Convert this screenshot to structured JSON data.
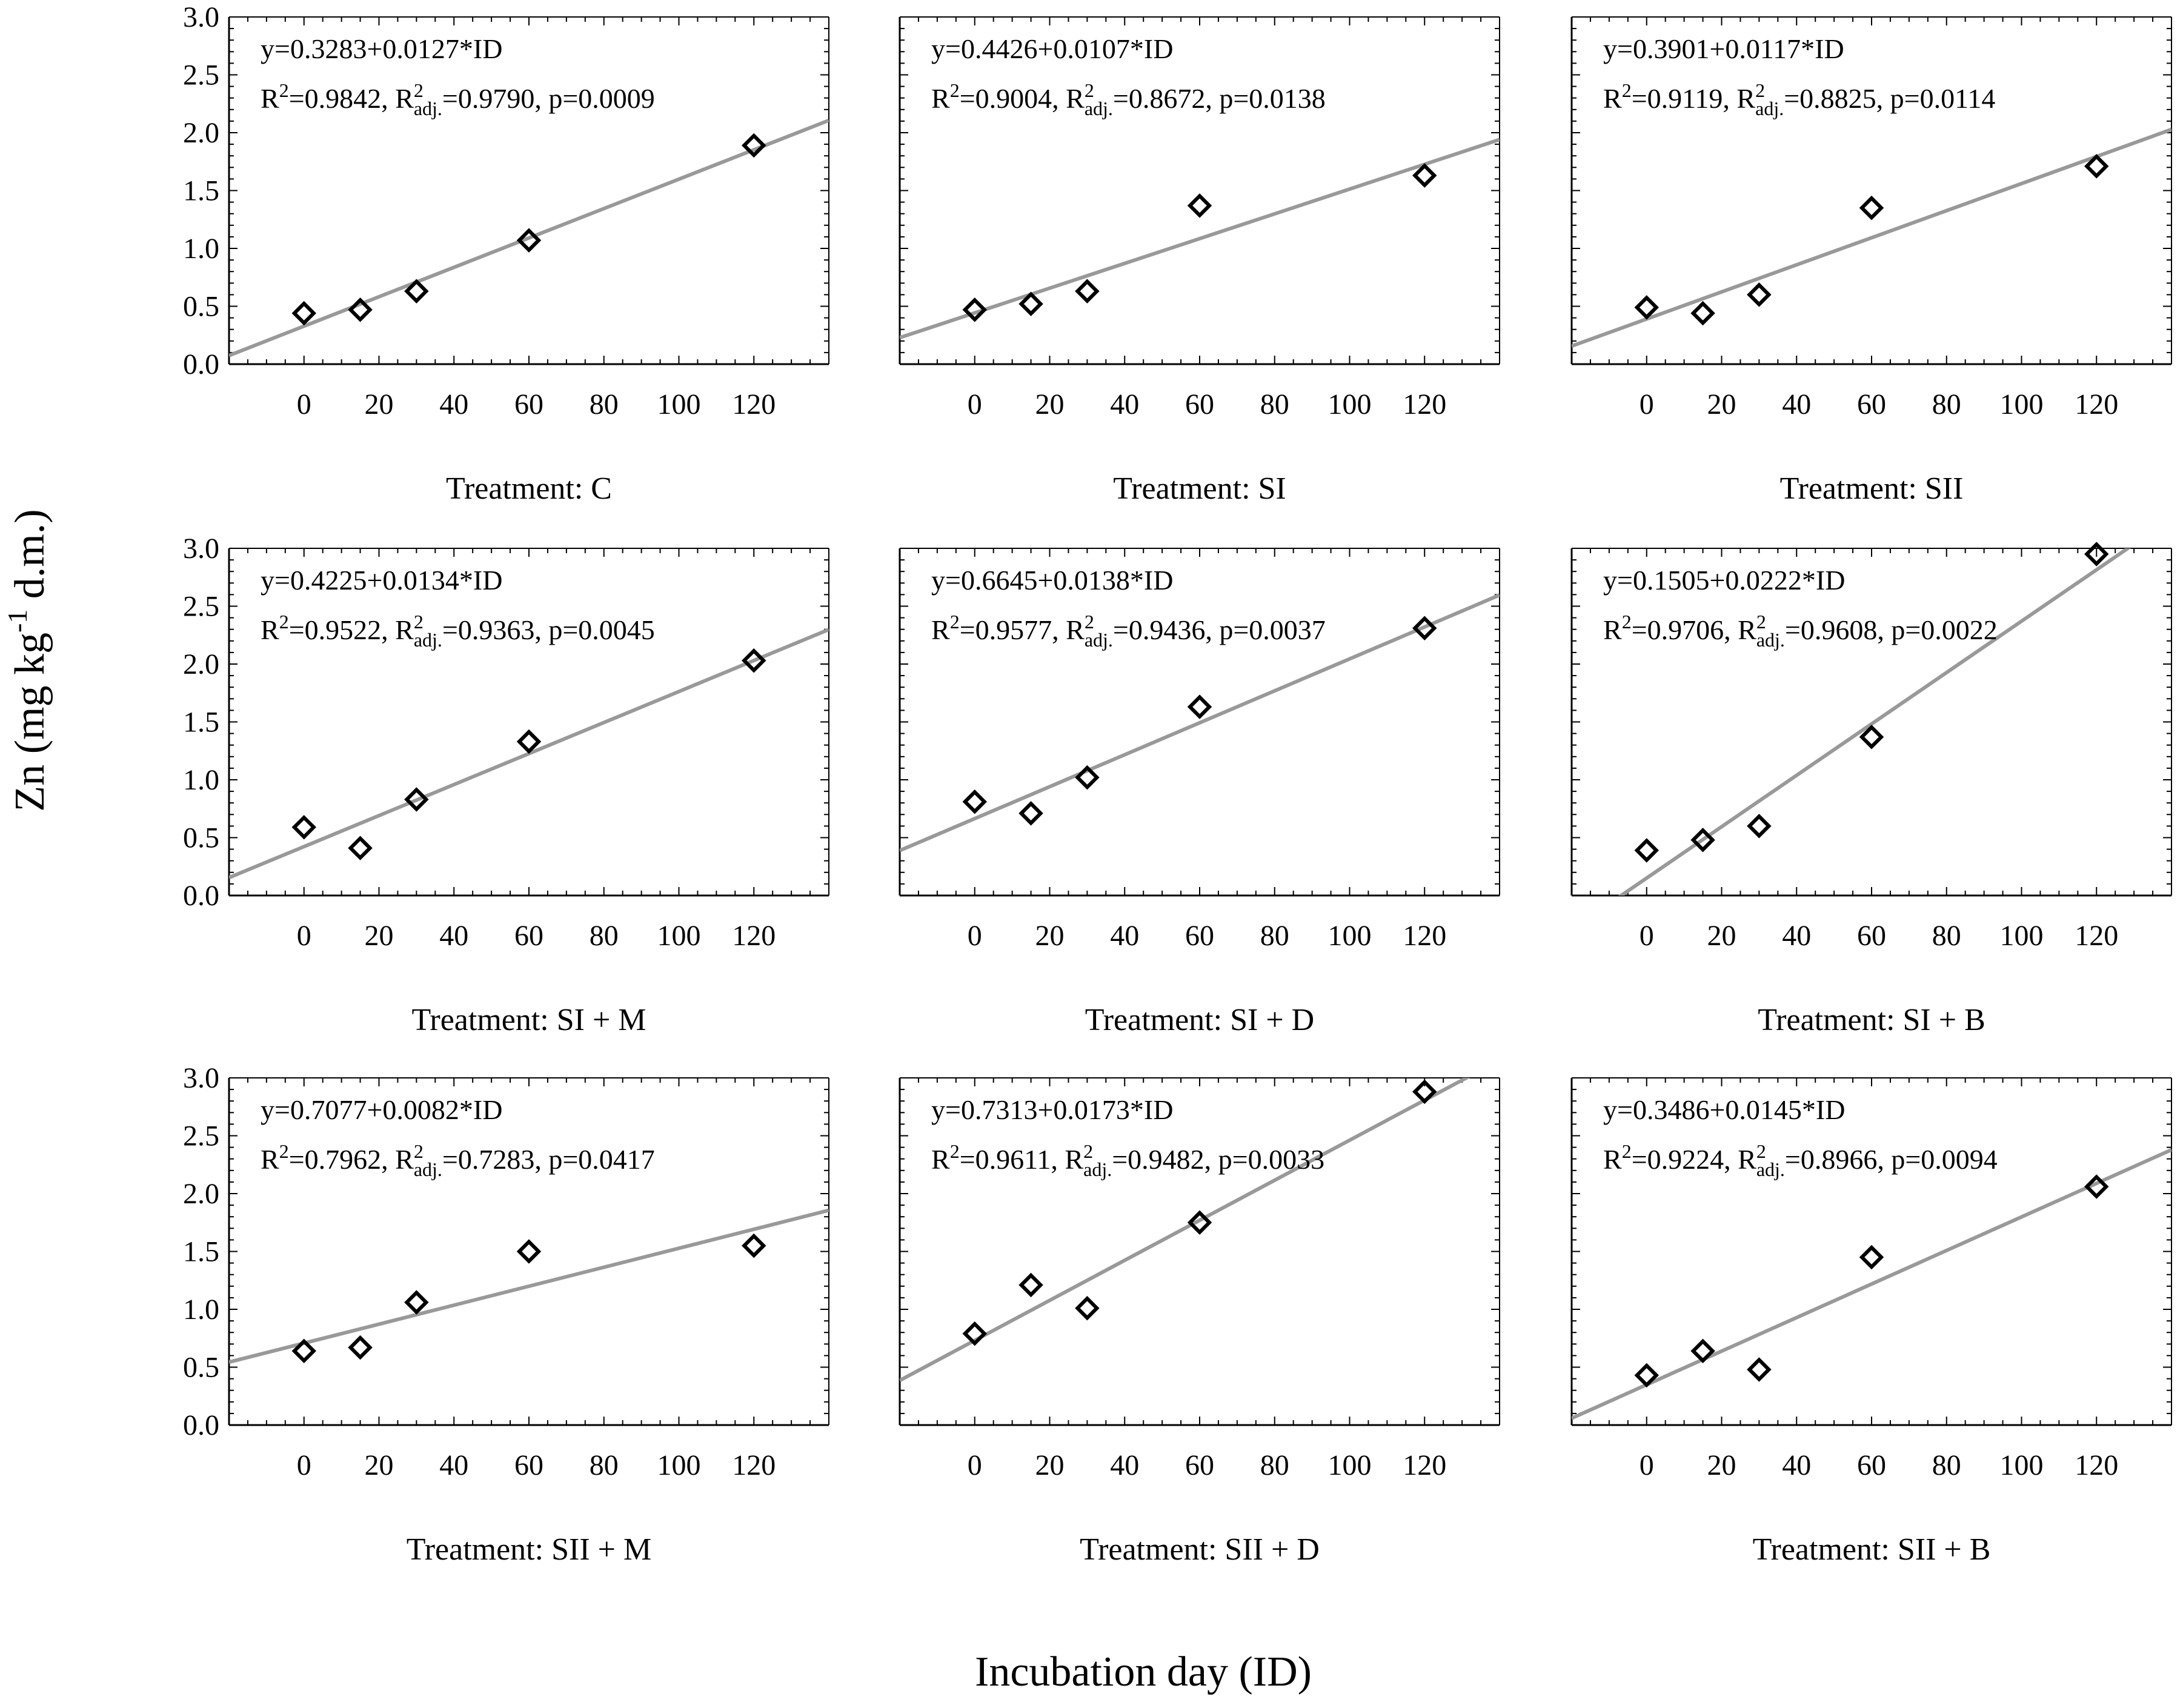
{
  "figure": {
    "ylabel": "Zn (mg kg-1 d.m.)",
    "ylabel_parts": {
      "main": "Zn (mg kg",
      "sup": "-1",
      "tail": " d.m.)"
    },
    "xlabel": "Incubation day (ID)"
  },
  "chart_data": [
    {
      "type": "scatter",
      "panel_label": "Treatment: C",
      "x": [
        0,
        15,
        30,
        60,
        120
      ],
      "y": [
        0.44,
        0.47,
        0.63,
        1.07,
        1.89
      ],
      "equation": "y=0.3283+0.0127*ID",
      "intercept": 0.3283,
      "slope": 0.0127,
      "stats": {
        "r2": "0.9842",
        "r2adj": "0.9790",
        "p": "0.0009"
      },
      "xlim": [
        -20,
        140
      ],
      "ylim": [
        0,
        3.0
      ],
      "xticks": [
        0,
        20,
        40,
        60,
        80,
        100,
        120
      ],
      "yticks": [
        "0.0",
        "0.5",
        "1.0",
        "1.5",
        "2.0",
        "2.5",
        "3.0"
      ],
      "grid": false
    },
    {
      "type": "scatter",
      "panel_label": "Treatment: SI",
      "x": [
        0,
        15,
        30,
        60,
        120
      ],
      "y": [
        0.47,
        0.52,
        0.63,
        1.37,
        1.63
      ],
      "equation": "y=0.4426+0.0107*ID",
      "intercept": 0.4426,
      "slope": 0.0107,
      "stats": {
        "r2": "0.9004",
        "r2adj": "0.8672",
        "p": "0.0138"
      },
      "xlim": [
        -20,
        140
      ],
      "ylim": [
        0,
        3.0
      ],
      "xticks": [
        0,
        20,
        40,
        60,
        80,
        100,
        120
      ],
      "yticks": [
        "0.0",
        "0.5",
        "1.0",
        "1.5",
        "2.0",
        "2.5",
        "3.0"
      ],
      "grid": false
    },
    {
      "type": "scatter",
      "panel_label": "Treatment: SII",
      "x": [
        0,
        15,
        30,
        60,
        120
      ],
      "y": [
        0.49,
        0.44,
        0.6,
        1.35,
        1.71
      ],
      "equation": "y=0.3901+0.0117*ID",
      "intercept": 0.3901,
      "slope": 0.0117,
      "stats": {
        "r2": "0.9119",
        "r2adj": "0.8825",
        "p": "0.0114"
      },
      "xlim": [
        -20,
        140
      ],
      "ylim": [
        0,
        3.0
      ],
      "xticks": [
        0,
        20,
        40,
        60,
        80,
        100,
        120
      ],
      "yticks": [
        "0.0",
        "0.5",
        "1.0",
        "1.5",
        "2.0",
        "2.5",
        "3.0"
      ],
      "grid": false
    },
    {
      "type": "scatter",
      "panel_label": "Treatment: SI + M",
      "x": [
        0,
        15,
        30,
        60,
        120
      ],
      "y": [
        0.59,
        0.41,
        0.83,
        1.33,
        2.03
      ],
      "equation": "y=0.4225+0.0134*ID",
      "intercept": 0.4225,
      "slope": 0.0134,
      "stats": {
        "r2": "0.9522",
        "r2adj": "0.9363",
        "p": "0.0045"
      },
      "xlim": [
        -20,
        140
      ],
      "ylim": [
        0,
        3.0
      ],
      "xticks": [
        0,
        20,
        40,
        60,
        80,
        100,
        120
      ],
      "yticks": [
        "0.0",
        "0.5",
        "1.0",
        "1.5",
        "2.0",
        "2.5",
        "3.0"
      ],
      "grid": false
    },
    {
      "type": "scatter",
      "panel_label": "Treatment: SI + D",
      "x": [
        0,
        15,
        30,
        60,
        120
      ],
      "y": [
        0.81,
        0.71,
        1.02,
        1.63,
        2.31
      ],
      "equation": "y=0.6645+0.0138*ID",
      "intercept": 0.6645,
      "slope": 0.0138,
      "stats": {
        "r2": "0.9577",
        "r2adj": "0.9436",
        "p": "0.0037"
      },
      "xlim": [
        -20,
        140
      ],
      "ylim": [
        0,
        3.0
      ],
      "xticks": [
        0,
        20,
        40,
        60,
        80,
        100,
        120
      ],
      "yticks": [
        "0.0",
        "0.5",
        "1.0",
        "1.5",
        "2.0",
        "2.5",
        "3.0"
      ],
      "grid": false
    },
    {
      "type": "scatter",
      "panel_label": "Treatment: SI + B",
      "x": [
        0,
        15,
        30,
        60,
        120
      ],
      "y": [
        0.39,
        0.48,
        0.6,
        1.37,
        2.95
      ],
      "equation": "y=0.1505+0.0222*ID",
      "intercept": 0.1505,
      "slope": 0.0222,
      "stats": {
        "r2": "0.9706",
        "r2adj": "0.9608",
        "p": "0.0022"
      },
      "xlim": [
        -20,
        140
      ],
      "ylim": [
        0,
        3.0
      ],
      "xticks": [
        0,
        20,
        40,
        60,
        80,
        100,
        120
      ],
      "yticks": [
        "0.0",
        "0.5",
        "1.0",
        "1.5",
        "2.0",
        "2.5",
        "3.0"
      ],
      "grid": false
    },
    {
      "type": "scatter",
      "panel_label": "Treatment: SII + M",
      "x": [
        0,
        15,
        30,
        60,
        120
      ],
      "y": [
        0.64,
        0.67,
        1.06,
        1.5,
        1.55
      ],
      "equation": "y=0.7077+0.0082*ID",
      "intercept": 0.7077,
      "slope": 0.0082,
      "stats": {
        "r2": "0.7962",
        "r2adj": "0.7283",
        "p": "0.0417"
      },
      "xlim": [
        -20,
        140
      ],
      "ylim": [
        0,
        3.0
      ],
      "xticks": [
        0,
        20,
        40,
        60,
        80,
        100,
        120
      ],
      "yticks": [
        "0.0",
        "0.5",
        "1.0",
        "1.5",
        "2.0",
        "2.5",
        "3.0"
      ],
      "grid": false
    },
    {
      "type": "scatter",
      "panel_label": "Treatment: SII + D",
      "x": [
        0,
        15,
        30,
        60,
        120
      ],
      "y": [
        0.79,
        1.21,
        1.01,
        1.75,
        2.88
      ],
      "equation": "y=0.7313+0.0173*ID",
      "intercept": 0.7313,
      "slope": 0.0173,
      "stats": {
        "r2": "0.9611",
        "r2adj": "0.9482",
        "p": "0.0033"
      },
      "xlim": [
        -20,
        140
      ],
      "ylim": [
        0,
        3.0
      ],
      "xticks": [
        0,
        20,
        40,
        60,
        80,
        100,
        120
      ],
      "yticks": [
        "0.0",
        "0.5",
        "1.0",
        "1.5",
        "2.0",
        "2.5",
        "3.0"
      ],
      "grid": false
    },
    {
      "type": "scatter",
      "panel_label": "Treatment: SII + B",
      "x": [
        0,
        15,
        30,
        60,
        120
      ],
      "y": [
        0.43,
        0.64,
        0.48,
        1.45,
        2.06
      ],
      "equation": "y=0.3486+0.0145*ID",
      "intercept": 0.3486,
      "slope": 0.0145,
      "stats": {
        "r2": "0.9224",
        "r2adj": "0.8966",
        "p": "0.0094"
      },
      "xlim": [
        -20,
        140
      ],
      "ylim": [
        0,
        3.0
      ],
      "xticks": [
        0,
        20,
        40,
        60,
        80,
        100,
        120
      ],
      "yticks": [
        "0.0",
        "0.5",
        "1.0",
        "1.5",
        "2.0",
        "2.5",
        "3.0"
      ],
      "grid": false
    }
  ],
  "colors": {
    "axis": "#000000",
    "fit_line": "#999999",
    "marker": "#000000",
    "background": "#ffffff"
  },
  "marker_symbol": "diamond-open"
}
